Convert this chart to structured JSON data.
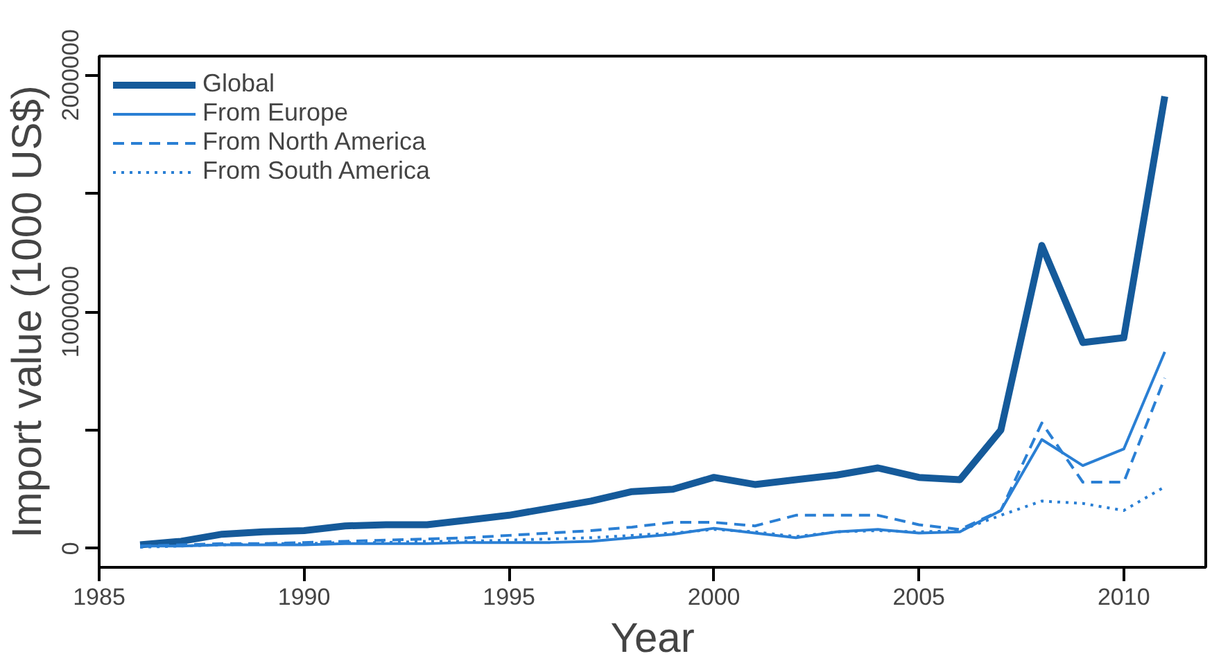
{
  "chart_data": {
    "type": "line",
    "xlabel": "Year",
    "ylabel": "Import value (1000 US$)",
    "x": [
      1986,
      1987,
      1988,
      1989,
      1990,
      1991,
      1992,
      1993,
      1994,
      1995,
      1996,
      1997,
      1998,
      1999,
      2000,
      2001,
      2002,
      2003,
      2004,
      2005,
      2006,
      2007,
      2008,
      2009,
      2010,
      2011
    ],
    "series": [
      {
        "name": "Global",
        "color": "#155a9a",
        "line_style": "solid",
        "values": [
          15000,
          30000,
          60000,
          70000,
          75000,
          95000,
          100000,
          100000,
          120000,
          140000,
          170000,
          200000,
          240000,
          250000,
          300000,
          270000,
          290000,
          310000,
          340000,
          300000,
          290000,
          500000,
          1280000,
          870000,
          890000,
          1910000
        ]
      },
      {
        "name": "From Europe",
        "color": "#2a7fd4",
        "line_style": "solid",
        "values": [
          10000,
          10000,
          15000,
          15000,
          15000,
          20000,
          20000,
          20000,
          25000,
          25000,
          25000,
          30000,
          45000,
          60000,
          85000,
          65000,
          45000,
          70000,
          80000,
          65000,
          70000,
          160000,
          460000,
          350000,
          420000,
          830000
        ]
      },
      {
        "name": "From North America",
        "color": "#2a7fd4",
        "line_style": "dashed",
        "values": [
          10000,
          15000,
          20000,
          20000,
          25000,
          30000,
          35000,
          40000,
          45000,
          55000,
          65000,
          75000,
          90000,
          110000,
          110000,
          95000,
          140000,
          140000,
          140000,
          100000,
          80000,
          160000,
          530000,
          280000,
          280000,
          720000
        ]
      },
      {
        "name": "From South America",
        "color": "#2a7fd4",
        "line_style": "dotted",
        "values": [
          5000,
          10000,
          15000,
          20000,
          20000,
          25000,
          25000,
          30000,
          30000,
          35000,
          40000,
          45000,
          55000,
          65000,
          80000,
          70000,
          50000,
          70000,
          75000,
          70000,
          75000,
          140000,
          200000,
          190000,
          160000,
          260000
        ]
      }
    ],
    "xlim": [
      1985,
      2012
    ],
    "xticks": [
      1985,
      1990,
      1995,
      2000,
      2005,
      2010
    ],
    "ylim": [
      -80000,
      2080000
    ],
    "yticks": [
      0,
      {
        "value": 500000,
        "label": null
      },
      1000000,
      {
        "value": 1500000,
        "label": null
      },
      2000000
    ],
    "grid": false,
    "legend": "top left"
  }
}
